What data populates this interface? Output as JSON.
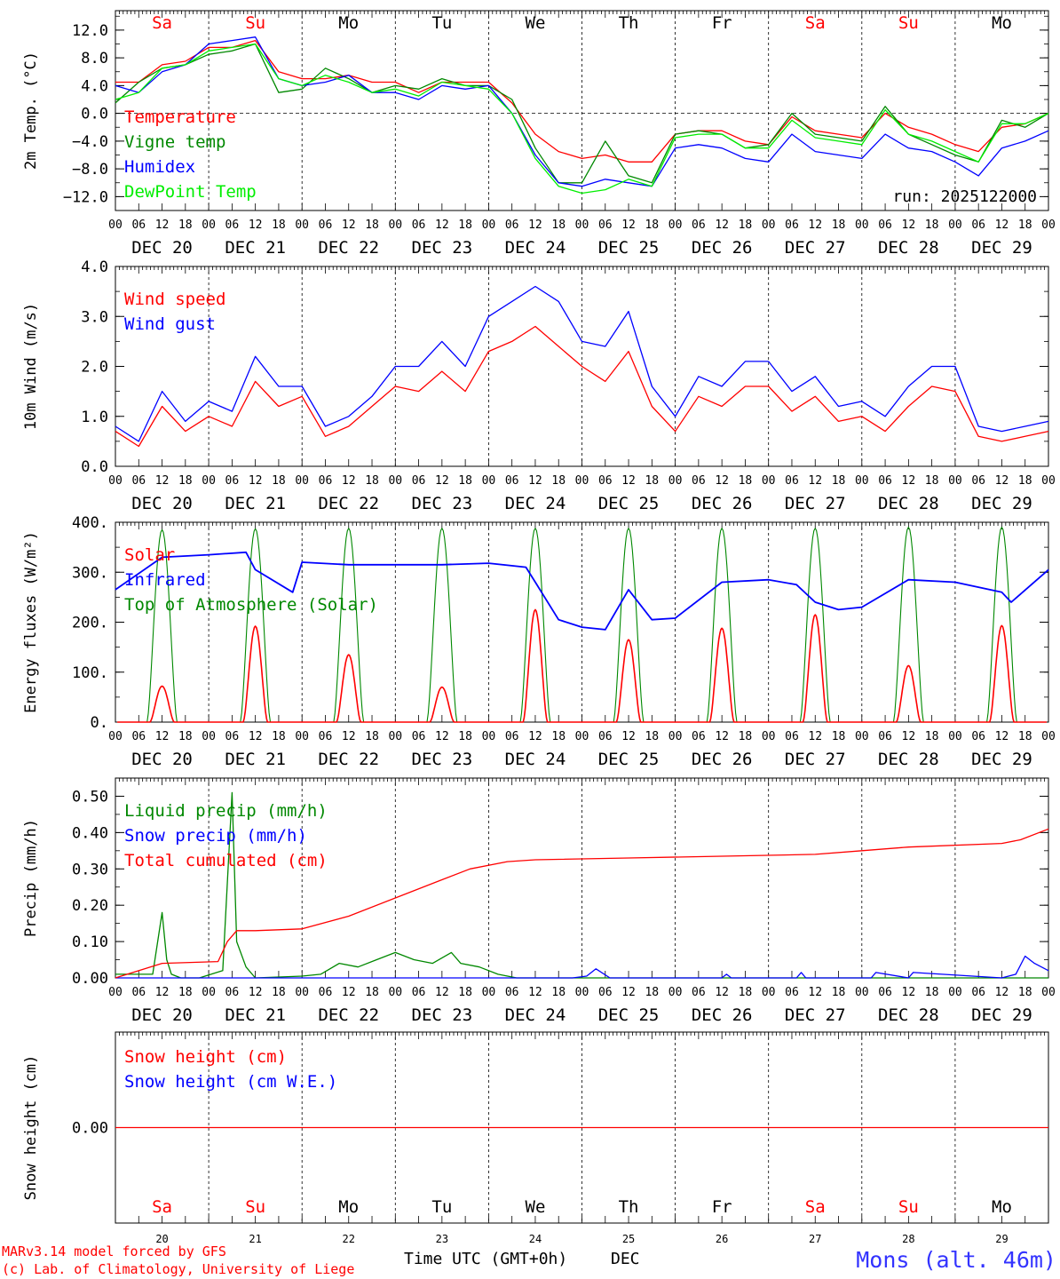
{
  "days": [
    "Sa",
    "Su",
    "Mo",
    "Tu",
    "We",
    "Th",
    "Fr",
    "Sa",
    "Su",
    "Mo"
  ],
  "weekend": [
    true,
    true,
    false,
    false,
    false,
    false,
    false,
    true,
    true,
    false
  ],
  "dates": [
    "DEC 20",
    "DEC 21",
    "DEC 22",
    "DEC 23",
    "DEC 24",
    "DEC 25",
    "DEC 26",
    "DEC 27",
    "DEC 28",
    "DEC 29"
  ],
  "day_numbers": [
    "20",
    "21",
    "22",
    "23",
    "24",
    "25",
    "26",
    "27",
    "28",
    "29"
  ],
  "hour_labels": [
    "00",
    "06",
    "12",
    "18"
  ],
  "final_hour_label": "00",
  "run_label": "run: 2025122000",
  "footer": {
    "credit1": "MARv3.14 model forced by GFS",
    "credit2": "(c) Lab. of Climatology, University of Liege",
    "xlabel": "Time UTC (GMT+0h)",
    "month": "DEC",
    "station": "Mons (alt. 46m)"
  },
  "colors": {
    "red": "#ff0000",
    "green": "#008800",
    "blue": "#0000ff",
    "lightgreen": "#00ee00",
    "black": "#000000"
  },
  "chart_data": [
    {
      "id": "temp",
      "type": "line",
      "ylabel": "2m Temp. (°C)",
      "ylim": [
        -14,
        14.8
      ],
      "ticks": [
        -12,
        -8,
        -4,
        0,
        4,
        8,
        12
      ],
      "tick_labels": [
        "−12.0",
        "−8.0",
        "−4.0",
        "0.0",
        "4.0",
        "8.0",
        "12.0"
      ],
      "zero_line": 0,
      "x_days": [
        0,
        0.25,
        0.5,
        0.75,
        1,
        1.25,
        1.5,
        1.75,
        2,
        2.25,
        2.5,
        2.75,
        3,
        3.25,
        3.5,
        3.75,
        4,
        4.25,
        4.5,
        4.75,
        5,
        5.25,
        5.5,
        5.75,
        6,
        6.25,
        6.5,
        6.75,
        7,
        7.25,
        7.5,
        7.75,
        8,
        8.25,
        8.5,
        8.75,
        9,
        9.25,
        9.5,
        9.75,
        10
      ],
      "series": [
        {
          "name": "Temperature",
          "color": "red",
          "values": [
            4.5,
            4.5,
            7,
            7.5,
            9.5,
            9.5,
            10.5,
            6,
            5,
            5,
            5.5,
            4.5,
            4.5,
            3,
            4.5,
            4.5,
            4.5,
            1.5,
            -3,
            -5.5,
            -6.5,
            -6,
            -7,
            -7,
            -3,
            -2.5,
            -2.5,
            -4,
            -4.5,
            -0.5,
            -2.5,
            -3,
            -3.5,
            0,
            -2,
            -3,
            -4.5,
            -5.5,
            -2,
            -1.5,
            0
          ]
        },
        {
          "name": "Vigne temp",
          "color": "green",
          "values": [
            1.5,
            4.5,
            6.5,
            7,
            8.5,
            9,
            10,
            3,
            3.5,
            6.5,
            5,
            3,
            4,
            3.5,
            5,
            4,
            4,
            2,
            -5,
            -10,
            -10,
            -4,
            -9,
            -10,
            -3,
            -2.5,
            -3,
            -5,
            -4.5,
            0,
            -3,
            -3.5,
            -4,
            1,
            -3,
            -4.5,
            -6,
            -7,
            -1,
            -2,
            0
          ]
        },
        {
          "name": "Humidex",
          "color": "blue",
          "values": [
            4,
            3,
            6,
            7,
            10,
            10.5,
            11,
            5,
            4,
            4.5,
            5.5,
            3,
            3,
            2,
            4,
            3.5,
            4,
            0,
            -6,
            -10,
            -10.5,
            -9.5,
            -10,
            -10.5,
            -5,
            -4.5,
            -5,
            -6.5,
            -7,
            -3,
            -5.5,
            -6,
            -6.5,
            -3,
            -5,
            -5.5,
            -7,
            -9,
            -5,
            -4,
            -2.5
          ]
        },
        {
          "name": "DewPoint Temp",
          "color": "lightgreen",
          "values": [
            2,
            3,
            6.5,
            7,
            9,
            9.5,
            10,
            5,
            4,
            5.5,
            4.5,
            3,
            3.5,
            2.5,
            4.5,
            4,
            3.5,
            0,
            -6.5,
            -10.5,
            -11.5,
            -11,
            -9.5,
            -10.5,
            -3.5,
            -3,
            -3,
            -5,
            -5,
            -1,
            -3.5,
            -4,
            -4.5,
            0.5,
            -3,
            -4,
            -5.5,
            -7,
            -1.5,
            -1.5,
            0
          ]
        }
      ]
    },
    {
      "id": "wind",
      "type": "line",
      "ylabel": "10m Wind (m/s)",
      "ylim": [
        0,
        4.0
      ],
      "ticks": [
        0,
        1,
        2,
        3,
        4
      ],
      "tick_labels": [
        "0.0",
        "1.0",
        "2.0",
        "3.0",
        "4.0"
      ],
      "x_days": [
        0,
        0.25,
        0.5,
        0.75,
        1,
        1.25,
        1.5,
        1.75,
        2,
        2.25,
        2.5,
        2.75,
        3,
        3.25,
        3.5,
        3.75,
        4,
        4.25,
        4.5,
        4.75,
        5,
        5.25,
        5.5,
        5.75,
        6,
        6.25,
        6.5,
        6.75,
        7,
        7.25,
        7.5,
        7.75,
        8,
        8.25,
        8.5,
        8.75,
        9,
        9.25,
        9.5,
        9.75,
        10
      ],
      "series": [
        {
          "name": "Wind speed",
          "color": "red",
          "values": [
            0.7,
            0.4,
            1.2,
            0.7,
            1,
            0.8,
            1.7,
            1.2,
            1.4,
            0.6,
            0.8,
            1.2,
            1.6,
            1.5,
            1.9,
            1.5,
            2.3,
            2.5,
            2.8,
            2.4,
            2,
            1.7,
            2.3,
            1.2,
            0.7,
            1.4,
            1.2,
            1.6,
            1.6,
            1.1,
            1.4,
            0.9,
            1,
            0.7,
            1.2,
            1.6,
            1.5,
            0.6,
            0.5,
            0.6,
            0.7
          ]
        },
        {
          "name": "Wind gust",
          "color": "blue",
          "values": [
            0.8,
            0.5,
            1.5,
            0.9,
            1.3,
            1.1,
            2.2,
            1.6,
            1.6,
            0.8,
            1,
            1.4,
            2,
            2,
            2.5,
            2,
            3,
            3.3,
            3.6,
            3.3,
            2.5,
            2.4,
            3.1,
            1.6,
            1,
            1.8,
            1.6,
            2.1,
            2.1,
            1.5,
            1.8,
            1.2,
            1.3,
            1,
            1.6,
            2,
            2,
            0.8,
            0.7,
            0.8,
            0.9
          ]
        }
      ]
    },
    {
      "id": "energy",
      "type": "line",
      "ylabel": "Energy fluxes (W/m²)",
      "ylim": [
        0,
        400
      ],
      "ticks": [
        0,
        100,
        200,
        300,
        400
      ],
      "tick_labels": [
        "0.",
        "100.",
        "200.",
        "300.",
        "400."
      ],
      "daily_peaks": {
        "solar": [
          72,
          192,
          135,
          70,
          225,
          165,
          188,
          215,
          113,
          193
        ],
        "toa": [
          385,
          387,
          388,
          388,
          388,
          388,
          388,
          388,
          390,
          390
        ]
      },
      "series": [
        {
          "name": "Solar",
          "color": "red"
        },
        {
          "name": "Infrared",
          "color": "blue",
          "x_days": [
            0,
            0.5,
            1,
            1.4,
            1.5,
            1.9,
            2,
            2.5,
            3,
            3.5,
            4,
            4.4,
            4.5,
            4.75,
            5,
            5.25,
            5.5,
            5.75,
            6,
            6.5,
            7,
            7.3,
            7.5,
            7.75,
            8,
            8.5,
            9,
            9.5,
            9.6,
            10
          ],
          "values": [
            265,
            330,
            335,
            340,
            305,
            260,
            320,
            315,
            315,
            315,
            318,
            310,
            280,
            205,
            190,
            185,
            265,
            205,
            208,
            280,
            285,
            275,
            240,
            225,
            230,
            285,
            280,
            260,
            240,
            305
          ]
        },
        {
          "name": "Top of Atmosphere (Solar)",
          "color": "green"
        }
      ]
    },
    {
      "id": "precip",
      "type": "line",
      "ylabel": "Precip (mm/h)",
      "ylim": [
        0,
        0.55
      ],
      "ticks": [
        0,
        0.1,
        0.2,
        0.3,
        0.4,
        0.5
      ],
      "tick_labels": [
        "0.00",
        "0.10",
        "0.20",
        "0.30",
        "0.40",
        "0.50"
      ],
      "series": [
        {
          "name": "Liquid precip (mm/h)",
          "color": "green",
          "x_days": [
            0,
            0.4,
            0.5,
            0.55,
            0.6,
            0.7,
            0.9,
            1.15,
            1.25,
            1.3,
            1.4,
            1.5,
            2,
            2.2,
            2.4,
            2.6,
            2.8,
            3,
            3.2,
            3.4,
            3.6,
            3.7,
            3.9,
            4.1,
            4.3,
            5,
            6,
            7,
            8,
            9,
            10
          ],
          "values": [
            0.01,
            0.01,
            0.18,
            0.05,
            0.01,
            0,
            0,
            0.02,
            0.51,
            0.1,
            0.03,
            0,
            0.005,
            0.01,
            0.04,
            0.03,
            0.05,
            0.07,
            0.05,
            0.04,
            0.07,
            0.04,
            0.03,
            0.01,
            0,
            0,
            0,
            0,
            0,
            0,
            0
          ]
        },
        {
          "name": "Snow precip (mm/h)",
          "color": "blue",
          "x_days": [
            0,
            4.9,
            5.05,
            5.15,
            5.3,
            6.5,
            6.55,
            6.6,
            7.3,
            7.35,
            7.4,
            8.1,
            8.15,
            8.5,
            8.55,
            9.5,
            9.65,
            9.75,
            9.85,
            10
          ],
          "values": [
            0,
            0,
            0.005,
            0.025,
            0,
            0,
            0.01,
            0,
            0,
            0.015,
            0,
            0,
            0.015,
            0,
            0.015,
            0,
            0.01,
            0.06,
            0.04,
            0.02
          ]
        },
        {
          "name": "Total cumulated (cm)",
          "color": "red",
          "x_days": [
            0,
            0.5,
            1.1,
            1.2,
            1.3,
            1.5,
            2,
            2.5,
            3,
            3.5,
            3.8,
            4.2,
            4.5,
            5.5,
            6.5,
            7.5,
            8,
            8.5,
            9.5,
            9.7,
            10
          ],
          "values": [
            0,
            0.04,
            0.045,
            0.1,
            0.13,
            0.13,
            0.135,
            0.17,
            0.22,
            0.27,
            0.3,
            0.32,
            0.325,
            0.33,
            0.335,
            0.34,
            0.35,
            0.36,
            0.37,
            0.38,
            0.41
          ]
        }
      ]
    },
    {
      "id": "snow",
      "type": "line",
      "ylabel": "Snow height (cm)",
      "ylim": [
        -1,
        1
      ],
      "ticks": [
        0
      ],
      "tick_labels": [
        "0.00"
      ],
      "series": [
        {
          "name": "Snow height (cm)",
          "color": "red",
          "x_days": [
            0,
            10
          ],
          "values": [
            0,
            0
          ]
        },
        {
          "name": "Snow height (cm W.E.)",
          "color": "blue",
          "x_days": [],
          "values": []
        }
      ]
    }
  ]
}
